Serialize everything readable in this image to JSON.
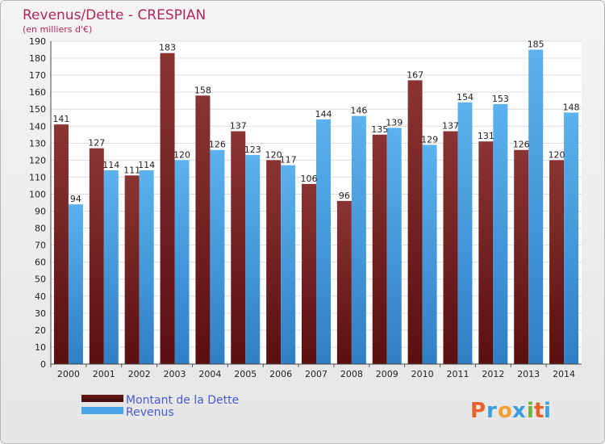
{
  "chart_data": {
    "type": "bar",
    "title": "Revenus/Dette - CRESPIAN",
    "subtitle": "(en milliers d'€)",
    "categories": [
      "2000",
      "2001",
      "2002",
      "2003",
      "2004",
      "2005",
      "2006",
      "2007",
      "2008",
      "2009",
      "2010",
      "2011",
      "2012",
      "2013",
      "2014"
    ],
    "series": [
      {
        "name": "Montant de la Dette",
        "color": "#8b2a2a",
        "values": [
          141,
          127,
          111,
          183,
          158,
          137,
          120,
          106,
          96,
          135,
          167,
          137,
          131,
          126,
          120
        ]
      },
      {
        "name": "Revenus",
        "color": "#4aa3e6",
        "values": [
          94,
          114,
          114,
          120,
          126,
          123,
          117,
          144,
          146,
          139,
          129,
          154,
          153,
          185,
          148
        ]
      }
    ],
    "ylim": [
      0,
      190
    ],
    "ytick_step": 10,
    "grid": true,
    "legend_position": "bottom-left"
  },
  "brand": {
    "letters": [
      "P",
      "r",
      "o",
      "x",
      "i",
      "t",
      "i"
    ],
    "colors": [
      "#e6622a",
      "#3aa0dd",
      "#f0a030",
      "#3aa0dd",
      "#6bb43a",
      "#e6622a",
      "#3aa0dd"
    ]
  }
}
